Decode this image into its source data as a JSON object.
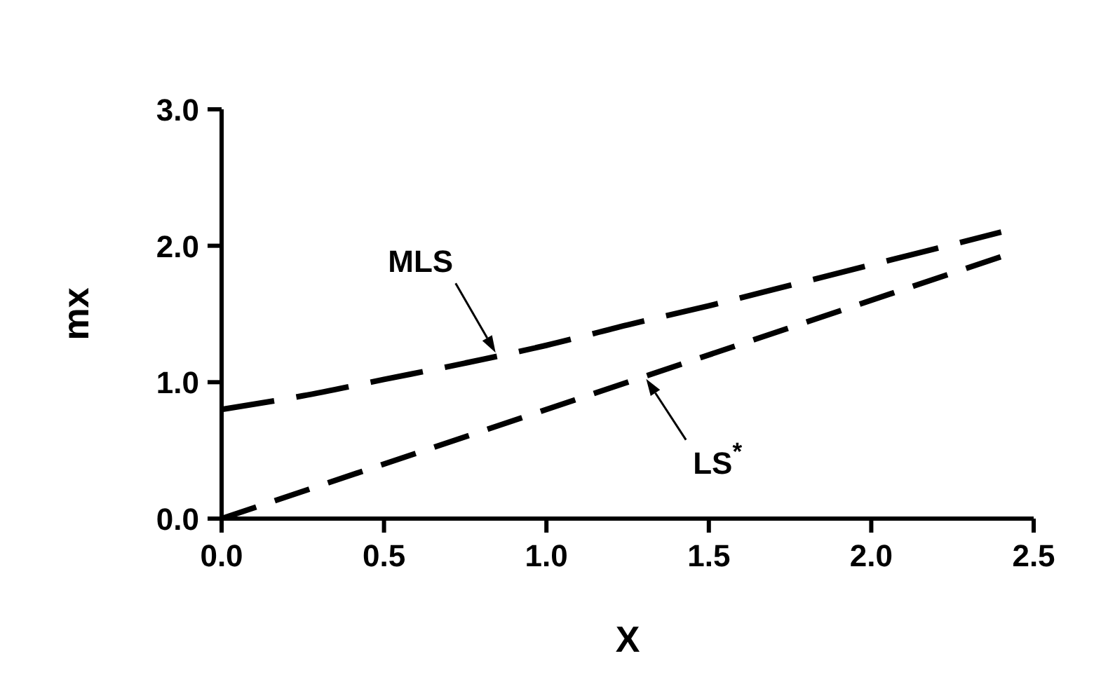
{
  "chart_data": {
    "type": "line",
    "xlabel": "X",
    "ylabel": "mx",
    "xlim": [
      0,
      2.5
    ],
    "ylim": [
      0,
      3
    ],
    "xticks": [
      {
        "value": 0,
        "label": "0.0"
      },
      0.5,
      {
        "value": 1,
        "label": "1.0"
      },
      1.5,
      {
        "value": 2,
        "label": "2.0"
      },
      2.5
    ],
    "yticks": [
      {
        "value": 0,
        "label": "0.0"
      },
      {
        "value": 1,
        "label": "1.0"
      },
      {
        "value": 2,
        "label": "2.0"
      },
      {
        "value": 3,
        "label": "3.0"
      }
    ],
    "grid": false,
    "line_style": "dashed",
    "marker": "none",
    "series": [
      {
        "color": "#000000",
        "x": [
          0,
          0.25,
          0.5,
          0.75,
          1.0,
          1.25,
          1.5,
          1.75,
          2.0,
          2.25,
          2.4
        ],
        "values": [
          0.8,
          0.9,
          1.02,
          1.14,
          1.27,
          1.42,
          1.56,
          1.71,
          1.86,
          2.01,
          2.1
        ]
      },
      {
        "color": "#000000",
        "x": [
          0,
          2.4
        ],
        "values": [
          0,
          1.92
        ]
      }
    ],
    "annotations": [
      {
        "text": "MLS",
        "x": 0.85,
        "y": 1.19
      },
      {
        "text": "LS$^{*}$",
        "x": 1.3,
        "y": 1.05
      }
    ]
  }
}
